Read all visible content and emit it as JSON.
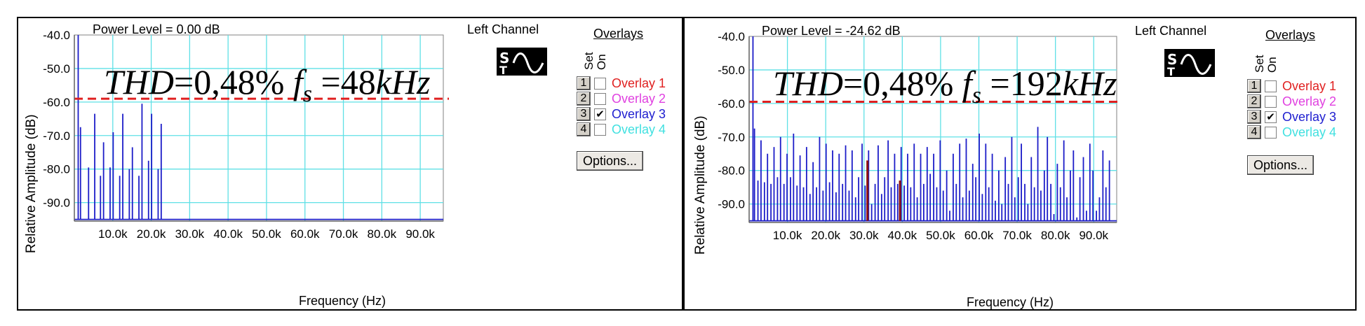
{
  "chart_data": [
    {
      "type": "line",
      "power_level": "Power Level = 0.00 dB",
      "channel": "Left Channel",
      "xlabel": "Frequency (Hz)",
      "ylabel": "Relative Amplitude (dB)",
      "xlim": [
        0,
        96000
      ],
      "ylim": [
        -95.5,
        -40
      ],
      "yticks": [
        -40.0,
        -50.0,
        -60.0,
        -70.0,
        -80.0,
        -90.0
      ],
      "ytick_labels": [
        "-40.0",
        "-50.0",
        "-60.0",
        "-70.0",
        "-80.0",
        "-90.0"
      ],
      "xticks": [
        10000,
        20000,
        30000,
        40000,
        50000,
        60000,
        70000,
        80000,
        90000
      ],
      "xtick_labels": [
        "10.0k",
        "20.0k",
        "30.0k",
        "40.0k",
        "50.0k",
        "60.0k",
        "70.0k",
        "80.0k",
        "90.0k"
      ],
      "threshold_db": -59,
      "annotation": {
        "lhs": "THD",
        "eq": "=",
        "val": "0,48%",
        "fs": "f",
        "sub": "s",
        "eq2": "=",
        "rate": "48",
        "unit": "kHz"
      },
      "series": [
        {
          "color": "#1c1cc8",
          "x": [
            1000,
            1600,
            3700,
            5300,
            6800,
            7600,
            9300,
            10100,
            11800,
            12600,
            14300,
            15100,
            16800,
            17600,
            19300,
            20100,
            21800,
            22600
          ],
          "y": [
            -40,
            -67.5,
            -79.5,
            -63.5,
            -82,
            -72,
            -79.5,
            -69,
            -82,
            -63.5,
            -80,
            -73.5,
            -82,
            -60.5,
            -77.5,
            -63.5,
            -80,
            -66.5
          ]
        }
      ],
      "overlays": {
        "title": "Overlays",
        "set_label": "Set",
        "on_label": "On",
        "items": [
          {
            "num": "1",
            "name": "Overlay 1",
            "color": "#e02020",
            "checked": false
          },
          {
            "num": "2",
            "name": "Overlay 2",
            "color": "#e040e0",
            "checked": false
          },
          {
            "num": "3",
            "name": "Overlay 3",
            "color": "#2020d0",
            "checked": true
          },
          {
            "num": "4",
            "name": "Overlay 4",
            "color": "#40e0e0",
            "checked": false
          }
        ],
        "options_label": "Options..."
      }
    },
    {
      "type": "line",
      "power_level": "Power Level = -24.62 dB",
      "channel": "Left Channel",
      "xlabel": "Frequency (Hz)",
      "ylabel": "Relative Amplitude (dB)",
      "xlim": [
        0,
        96000
      ],
      "ylim": [
        -95.5,
        -40
      ],
      "yticks": [
        -40.0,
        -50.0,
        -60.0,
        -70.0,
        -80.0,
        -90.0
      ],
      "ytick_labels": [
        "-40.0",
        "-50.0",
        "-60.0",
        "-70.0",
        "-80.0",
        "-90.0"
      ],
      "xticks": [
        10000,
        20000,
        30000,
        40000,
        50000,
        60000,
        70000,
        80000,
        90000
      ],
      "xtick_labels": [
        "10.0k",
        "20.0k",
        "30.0k",
        "40.0k",
        "50.0k",
        "60.0k",
        "70.0k",
        "80.0k",
        "90.0k"
      ],
      "threshold_db": -59.5,
      "annotation": {
        "lhs": "THD",
        "eq": "=",
        "val": "0,48%",
        "fs": "f",
        "sub": "s",
        "eq2": "=",
        "rate": "192",
        "unit": "kHz"
      },
      "series": [
        {
          "color": "#1c1cc8",
          "x": [
            1000,
            1400,
            2300,
            3100,
            4000,
            4800,
            5700,
            6500,
            7400,
            8200,
            9100,
            9900,
            10800,
            11600,
            12500,
            13300,
            14200,
            15000,
            15900,
            16700,
            17600,
            18400,
            19300,
            20100,
            21000,
            21800,
            22700,
            23500,
            24400,
            25200,
            26100,
            26900,
            27800,
            28600,
            29500,
            30300,
            31200,
            32000,
            32900,
            33700,
            34600,
            35400,
            36300,
            37100,
            38000,
            38800,
            39700,
            40500,
            41400,
            42200,
            43100,
            43900,
            44800,
            45600,
            46500,
            47300,
            48200,
            49000,
            49900,
            50700,
            51600,
            52400,
            53300,
            54100,
            55000,
            55800,
            56700,
            57500,
            58400,
            59200,
            60100,
            60900,
            61800,
            62600,
            63500,
            64300,
            65200,
            66000,
            66900,
            67700,
            68600,
            69400,
            70300,
            71100,
            72000,
            72800,
            73700,
            74500,
            75400,
            76200,
            77100,
            77900,
            78800,
            79600,
            80500,
            81300,
            82200,
            83000,
            83900,
            84700,
            85600,
            86400,
            87300,
            88100,
            89000,
            89800,
            90700,
            91500,
            92400,
            93200,
            94100
          ],
          "y": [
            -40,
            -67.5,
            -83,
            -71,
            -83.5,
            -75,
            -84,
            -73,
            -82,
            -70,
            -84,
            -75,
            -82,
            -69,
            -84.5,
            -75.5,
            -85,
            -73,
            -87,
            -77.5,
            -85,
            -70,
            -86,
            -72,
            -83.5,
            -74,
            -86.5,
            -75,
            -84,
            -72.5,
            -86,
            -74,
            -88,
            -82,
            -72,
            -84.5,
            -74,
            -90,
            -84,
            -72.5,
            -87,
            -82,
            -71,
            -85,
            -75,
            -84,
            -73,
            -84.5,
            -75,
            -85,
            -72,
            -88,
            -75,
            -84,
            -73,
            -81,
            -75,
            -85,
            -71,
            -86,
            -80,
            -92,
            -75,
            -84,
            -72,
            -88,
            -70.5,
            -86,
            -78,
            -82,
            -69,
            -87,
            -72,
            -85,
            -75,
            -89,
            -80,
            -90,
            -76,
            -84,
            -70,
            -88,
            -82,
            -72,
            -84,
            -90,
            -76,
            -85,
            -67,
            -86,
            -80,
            -70,
            -84,
            -93,
            -78,
            -85,
            -71,
            -88,
            -80,
            -74,
            -94,
            -82,
            -76,
            -92,
            -72,
            -80,
            -92,
            -88,
            -74,
            -85,
            -77
          ],
          "peaks": [
            2
          ]
        },
        {
          "color": "#8c1010",
          "x": [
            30900,
            39400
          ],
          "y": [
            -77,
            -83
          ]
        }
      ],
      "overlays": {
        "title": "Overlays",
        "set_label": "Set",
        "on_label": "On",
        "items": [
          {
            "num": "1",
            "name": "Overlay 1",
            "color": "#e02020",
            "checked": false
          },
          {
            "num": "2",
            "name": "Overlay 2",
            "color": "#e040e0",
            "checked": false
          },
          {
            "num": "3",
            "name": "Overlay 3",
            "color": "#2020d0",
            "checked": true
          },
          {
            "num": "4",
            "name": "Overlay 4",
            "color": "#40e0e0",
            "checked": false
          }
        ],
        "options_label": "Options..."
      }
    }
  ]
}
